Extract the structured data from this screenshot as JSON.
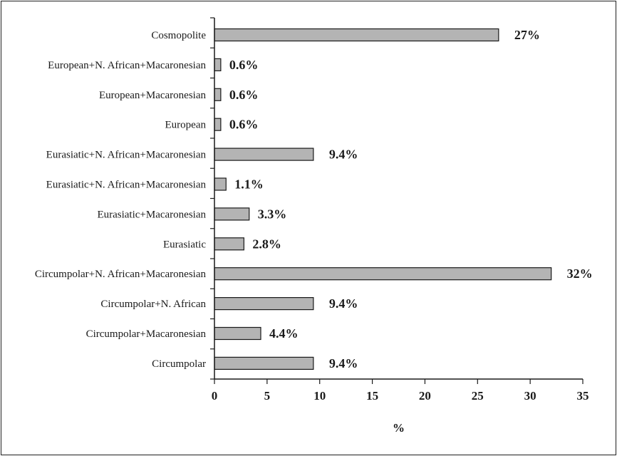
{
  "chart_data": {
    "type": "bar",
    "orientation": "horizontal",
    "categories": [
      "Cosmopolite",
      "European+N. African+Macaronesian",
      "European+Macaronesian",
      "European",
      "Eurasiatic+N. African+Macaronesian",
      "Eurasiatic+N. African+Macaronesian",
      "Eurasiatic+Macaronesian",
      "Eurasiatic",
      "Circumpolar+N. African+Macaronesian",
      "Circumpolar+N. African",
      "Circumpolar+Macaronesian",
      "Circumpolar"
    ],
    "values": [
      27,
      0.6,
      0.6,
      0.6,
      9.4,
      1.1,
      3.3,
      2.8,
      32,
      9.4,
      4.4,
      9.4
    ],
    "data_labels": [
      "27%",
      "0.6%",
      "0.6%",
      "0.6%",
      "9.4%",
      "1.1%",
      "3.3%",
      "2.8%",
      "32%",
      "9.4%",
      "4.4%",
      "9.4%"
    ],
    "xlabel": "%",
    "xlim": [
      0,
      35
    ],
    "xticks": [
      0,
      5,
      10,
      15,
      20,
      25,
      30,
      35
    ],
    "grid": false,
    "bar_color": "#b4b4b4",
    "bar_edge_color": "#1a1a1a"
  }
}
